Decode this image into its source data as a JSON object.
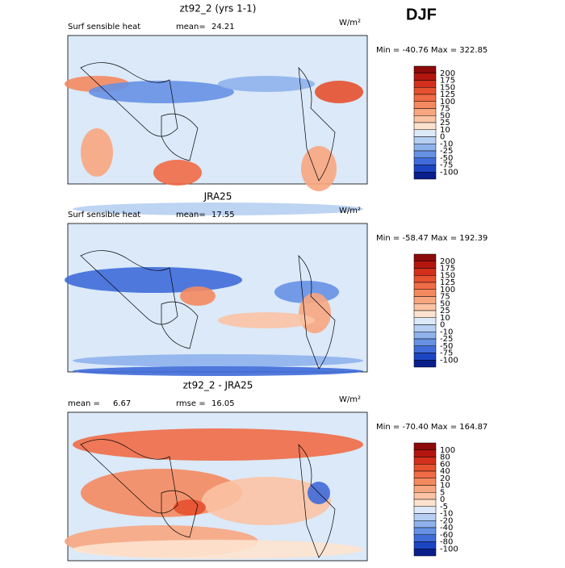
{
  "season": "DJF",
  "panels": [
    {
      "title": "zt92_2 (yrs 1-1)",
      "left_label": "Surf sensible heat",
      "mean_label": "mean=",
      "mean": 24.21,
      "units": "W/m²",
      "minmax": "Min = -40.76 Max = 322.85",
      "levels": [
        200,
        175,
        150,
        125,
        100,
        75,
        50,
        25,
        10,
        0,
        -10,
        -25,
        -50,
        -75,
        -100
      ],
      "colors": [
        "#8c0a0a",
        "#b3160f",
        "#d32f1c",
        "#e6512f",
        "#ef6c46",
        "#f4895f",
        "#f8a67f",
        "#fbc3a4",
        "#fde3cf",
        "#dbe9f8",
        "#b6cff2",
        "#8fb2ec",
        "#6691e4",
        "#3f6cd9",
        "#1c45c4",
        "#0a1f8c"
      ]
    },
    {
      "title": "JRA25",
      "left_label": "Surf sensible heat",
      "mean_label": "mean=",
      "mean": 17.55,
      "units": "W/m²",
      "minmax": "Min = -58.47 Max = 192.39",
      "levels": [
        200,
        175,
        150,
        125,
        100,
        75,
        50,
        25,
        10,
        0,
        -10,
        -25,
        -50,
        -75,
        -100
      ],
      "colors": [
        "#8c0a0a",
        "#b3160f",
        "#d32f1c",
        "#e6512f",
        "#ef6c46",
        "#f4895f",
        "#f8a67f",
        "#fbc3a4",
        "#fde3cf",
        "#dbe9f8",
        "#b6cff2",
        "#8fb2ec",
        "#6691e4",
        "#3f6cd9",
        "#1c45c4",
        "#0a1f8c"
      ]
    },
    {
      "title": "zt92_2 - JRA25",
      "left_label": "mean =",
      "mean_label": "rmse =",
      "left_value": 6.67,
      "mean": 16.05,
      "units": "W/m²",
      "minmax": "Min = -70.40 Max = 164.87",
      "levels": [
        100,
        80,
        60,
        40,
        20,
        10,
        5,
        0,
        -5,
        -10,
        -20,
        -40,
        -60,
        -80,
        -100
      ],
      "colors": [
        "#8c0a0a",
        "#b3160f",
        "#d32f1c",
        "#e6512f",
        "#ef6c46",
        "#f4895f",
        "#f8a67f",
        "#fbc3a4",
        "#fde3cf",
        "#dbe9f8",
        "#b6cff2",
        "#8fb2ec",
        "#6691e4",
        "#3f6cd9",
        "#1c45c4",
        "#0a1f8c"
      ]
    }
  ]
}
